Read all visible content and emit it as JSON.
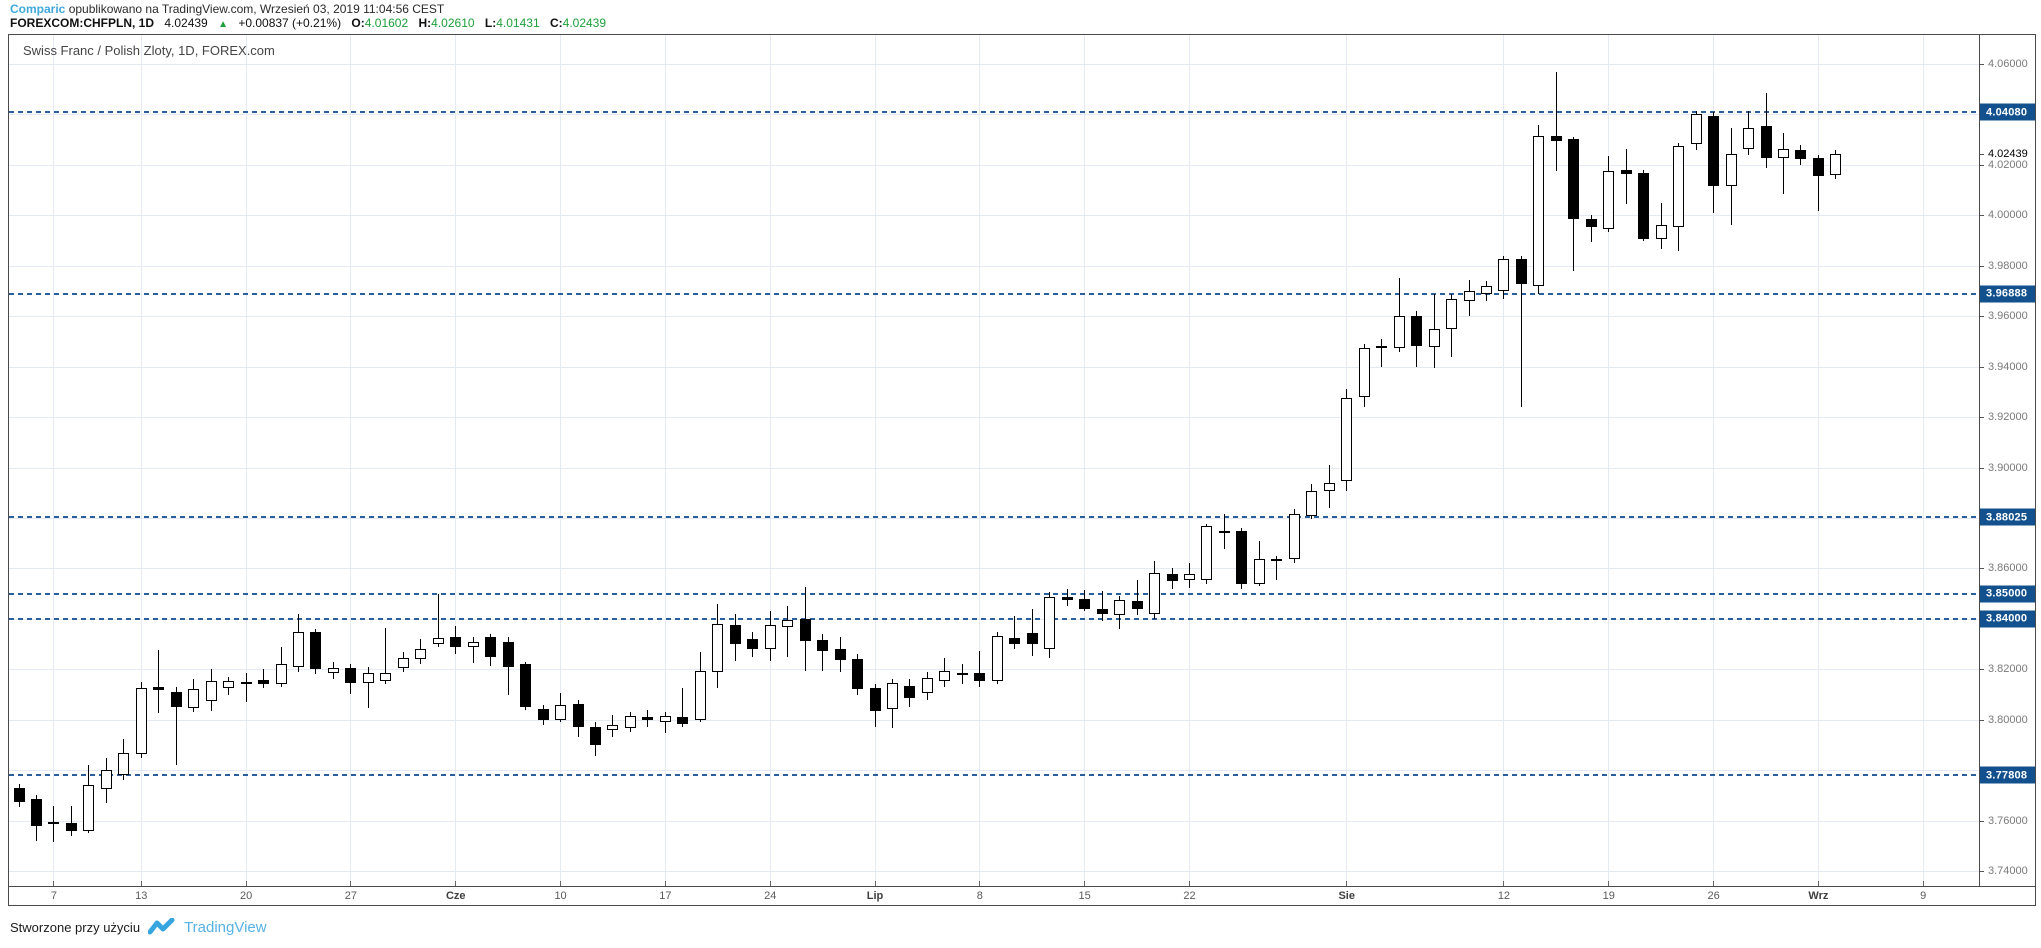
{
  "header": {
    "source": "Comparic",
    "published_rest": " opublikowano na TradingView.com, Wrzesień 03, 2019 11:04:56 CEST",
    "symbol_line": {
      "symbol": "FOREXCOM:CHFPLN, 1D",
      "last": "4.02439",
      "direction_icon": "▲",
      "change": "+0.00837 (+0.21%)",
      "o_label": "O:",
      "o": "4.01602",
      "h_label": "H:",
      "h": "4.02610",
      "l_label": "L:",
      "l": "4.01431",
      "c_label": "C:",
      "c": "4.02439"
    }
  },
  "chart": {
    "title": "Swiss Franc / Polish Zloty, 1D, FOREX.com",
    "last_price_label": "4.02439",
    "level_badges": [
      "4.04080",
      "3.96888",
      "3.88025",
      "3.85000",
      "3.84000",
      "3.77808"
    ],
    "y_labels": [
      "4.06000",
      "4.02000",
      "4.00000",
      "3.98000",
      "3.96000",
      "3.94000",
      "3.92000",
      "3.90000",
      "3.86000",
      "3.82000",
      "3.80000",
      "3.76000",
      "3.74000"
    ],
    "colors": {
      "badge_blue": "#13518e",
      "dashed_blue": "#2a5f9e",
      "grid": "#e4eaf4",
      "bull": "#ffffff",
      "bear": "#000000",
      "link_blue": "#3fa9dc",
      "green": "#1fa039",
      "brand_blue": "#55b2e5"
    }
  },
  "footer": {
    "text": "Stworzone przy użyciu",
    "brand": "TradingView"
  },
  "chart_data": {
    "type": "candlestick",
    "symbol": "FOREXCOM:CHFPLN",
    "interval": "1D",
    "title": "Swiss Franc / Polish Zloty, 1D, FOREX.com",
    "ylim": [
      3.7341,
      4.0715
    ],
    "y_tick_step": 0.02,
    "levels": [
      4.0408,
      3.96888,
      3.88025,
      3.85,
      3.84,
      3.77808
    ],
    "last_price": 4.02439,
    "x_ticks": [
      {
        "label": "7",
        "i": 2,
        "month": false
      },
      {
        "label": "13",
        "i": 7,
        "month": false
      },
      {
        "label": "20",
        "i": 13,
        "month": false
      },
      {
        "label": "27",
        "i": 19,
        "month": false
      },
      {
        "label": "Cze",
        "i": 25,
        "month": true
      },
      {
        "label": "10",
        "i": 31,
        "month": false
      },
      {
        "label": "17",
        "i": 37,
        "month": false
      },
      {
        "label": "24",
        "i": 43,
        "month": false
      },
      {
        "label": "Lip",
        "i": 49,
        "month": true
      },
      {
        "label": "8",
        "i": 55,
        "month": false
      },
      {
        "label": "15",
        "i": 61,
        "month": false
      },
      {
        "label": "22",
        "i": 67,
        "month": false
      },
      {
        "label": "Sie",
        "i": 76,
        "month": true
      },
      {
        "label": "12",
        "i": 85,
        "month": false
      },
      {
        "label": "19",
        "i": 91,
        "month": false
      },
      {
        "label": "26",
        "i": 97,
        "month": false
      },
      {
        "label": "Wrz",
        "i": 103,
        "month": true
      },
      {
        "label": "9",
        "i": 109,
        "month": false
      }
    ],
    "dates": [
      "2019-05-05",
      "2019-05-06",
      "2019-05-07",
      "2019-05-08",
      "2019-05-09",
      "2019-05-10",
      "2019-05-12",
      "2019-05-13",
      "2019-05-14",
      "2019-05-15",
      "2019-05-16",
      "2019-05-17",
      "2019-05-19",
      "2019-05-20",
      "2019-05-21",
      "2019-05-22",
      "2019-05-23",
      "2019-05-24",
      "2019-05-26",
      "2019-05-27",
      "2019-05-28",
      "2019-05-29",
      "2019-05-30",
      "2019-05-31",
      "2019-06-02",
      "2019-06-03",
      "2019-06-04",
      "2019-06-05",
      "2019-06-06",
      "2019-06-07",
      "2019-06-09",
      "2019-06-10",
      "2019-06-11",
      "2019-06-12",
      "2019-06-13",
      "2019-06-14",
      "2019-06-16",
      "2019-06-17",
      "2019-06-18",
      "2019-06-19",
      "2019-06-20",
      "2019-06-21",
      "2019-06-23",
      "2019-06-24",
      "2019-06-25",
      "2019-06-26",
      "2019-06-27",
      "2019-06-28",
      "2019-06-30",
      "2019-07-01",
      "2019-07-02",
      "2019-07-03",
      "2019-07-04",
      "2019-07-05",
      "2019-07-07",
      "2019-07-08",
      "2019-07-09",
      "2019-07-10",
      "2019-07-11",
      "2019-07-12",
      "2019-07-14",
      "2019-07-15",
      "2019-07-16",
      "2019-07-17",
      "2019-07-18",
      "2019-07-19",
      "2019-07-21",
      "2019-07-22",
      "2019-07-23",
      "2019-07-24",
      "2019-07-25",
      "2019-07-26",
      "2019-07-28",
      "2019-07-29",
      "2019-07-30",
      "2019-07-31",
      "2019-08-01",
      "2019-08-02",
      "2019-08-04",
      "2019-08-05",
      "2019-08-06",
      "2019-08-07",
      "2019-08-08",
      "2019-08-09",
      "2019-08-11",
      "2019-08-12",
      "2019-08-13",
      "2019-08-14",
      "2019-08-15",
      "2019-08-16",
      "2019-08-18",
      "2019-08-19",
      "2019-08-20",
      "2019-08-21",
      "2019-08-22",
      "2019-08-23",
      "2019-08-25",
      "2019-08-26",
      "2019-08-27",
      "2019-08-28",
      "2019-08-29",
      "2019-08-30",
      "2019-09-01",
      "2019-09-02",
      "2019-09-03"
    ],
    "candles": [
      [
        3.773,
        3.7745,
        3.7655,
        3.7675
      ],
      [
        3.7685,
        3.77,
        3.752,
        3.758
      ],
      [
        3.7595,
        3.766,
        3.7515,
        3.7585
      ],
      [
        3.759,
        3.766,
        3.754,
        3.756
      ],
      [
        3.756,
        3.782,
        3.755,
        3.774
      ],
      [
        3.7725,
        3.785,
        3.767,
        3.78
      ],
      [
        3.778,
        3.7925,
        3.776,
        3.787
      ],
      [
        3.7865,
        3.815,
        3.785,
        3.8125
      ],
      [
        3.813,
        3.8275,
        3.8025,
        3.8118
      ],
      [
        3.811,
        3.813,
        3.782,
        3.805
      ],
      [
        3.8047,
        3.816,
        3.803,
        3.8122
      ],
      [
        3.8075,
        3.82,
        3.8035,
        3.8155
      ],
      [
        3.8126,
        3.817,
        3.81,
        3.8154
      ],
      [
        3.8145,
        3.8185,
        3.807,
        3.8148
      ],
      [
        3.8158,
        3.82,
        3.8125,
        3.8142
      ],
      [
        3.8142,
        3.829,
        3.813,
        3.822
      ],
      [
        3.821,
        3.842,
        3.819,
        3.835
      ],
      [
        3.835,
        3.836,
        3.818,
        3.82
      ],
      [
        3.8186,
        3.823,
        3.816,
        3.8206
      ],
      [
        3.8206,
        3.822,
        3.8103,
        3.8146
      ],
      [
        3.8146,
        3.821,
        3.8047,
        3.8186
      ],
      [
        3.8155,
        3.8362,
        3.814,
        3.8185
      ],
      [
        3.8206,
        3.827,
        3.819,
        3.8246
      ],
      [
        3.824,
        3.832,
        3.822,
        3.828
      ],
      [
        3.83,
        3.8497,
        3.829,
        3.8325
      ],
      [
        3.833,
        3.837,
        3.826,
        3.829
      ],
      [
        3.829,
        3.833,
        3.8226,
        3.831
      ],
      [
        3.833,
        3.834,
        3.8212,
        3.825
      ],
      [
        3.831,
        3.833,
        3.81,
        3.821
      ],
      [
        3.822,
        3.823,
        3.804,
        3.805
      ],
      [
        3.8043,
        3.806,
        3.798,
        3.8
      ],
      [
        3.8,
        3.8107,
        3.799,
        3.806
      ],
      [
        3.8063,
        3.808,
        3.793,
        3.797
      ],
      [
        3.797,
        3.799,
        3.7855,
        3.79
      ],
      [
        3.796,
        3.8018,
        3.793,
        3.798
      ],
      [
        3.7967,
        3.803,
        3.795,
        3.8014
      ],
      [
        3.801,
        3.804,
        3.797,
        3.8
      ],
      [
        3.799,
        3.803,
        3.7946,
        3.8014
      ],
      [
        3.801,
        3.8126,
        3.797,
        3.7985
      ],
      [
        3.8,
        3.827,
        3.799,
        3.8194
      ],
      [
        3.819,
        3.846,
        3.8126,
        3.838
      ],
      [
        3.8374,
        3.842,
        3.8234,
        3.8302
      ],
      [
        3.8322,
        3.835,
        3.825,
        3.828
      ],
      [
        3.828,
        3.843,
        3.8234,
        3.8374
      ],
      [
        3.8366,
        3.845,
        3.825,
        3.8394
      ],
      [
        3.84,
        3.8525,
        3.8194,
        3.8314
      ],
      [
        3.8318,
        3.834,
        3.8194,
        3.8274
      ],
      [
        3.8282,
        3.833,
        3.819,
        3.8238
      ],
      [
        3.8242,
        3.826,
        3.81,
        3.8122
      ],
      [
        3.8126,
        3.814,
        3.797,
        3.8035
      ],
      [
        3.8043,
        3.816,
        3.7966,
        3.8146
      ],
      [
        3.8134,
        3.816,
        3.805,
        3.8087
      ],
      [
        3.8107,
        3.819,
        3.808,
        3.8166
      ],
      [
        3.8154,
        3.8246,
        3.813,
        3.8194
      ],
      [
        3.8186,
        3.822,
        3.814,
        3.8186
      ],
      [
        3.8186,
        3.8274,
        3.813,
        3.8154
      ],
      [
        3.8154,
        3.835,
        3.814,
        3.8334
      ],
      [
        3.8326,
        3.841,
        3.8282,
        3.8302
      ],
      [
        3.8344,
        3.8439,
        3.8254,
        3.8301
      ],
      [
        3.8282,
        3.8505,
        3.8246,
        3.8487
      ],
      [
        3.8487,
        3.852,
        3.845,
        3.8474
      ],
      [
        3.8478,
        3.8514,
        3.843,
        3.8438
      ],
      [
        3.8438,
        3.851,
        3.839,
        3.8418
      ],
      [
        3.8414,
        3.849,
        3.836,
        3.8474
      ],
      [
        3.847,
        3.8553,
        3.8414,
        3.8438
      ],
      [
        3.842,
        3.8628,
        3.84,
        3.858
      ],
      [
        3.8577,
        3.86,
        3.852,
        3.855
      ],
      [
        3.8553,
        3.862,
        3.8522,
        3.8577
      ],
      [
        3.8553,
        3.8776,
        3.854,
        3.8767
      ],
      [
        3.8748,
        3.8816,
        3.8677,
        3.874
      ],
      [
        3.8748,
        3.876,
        3.852,
        3.854
      ],
      [
        3.854,
        3.8708,
        3.853,
        3.8637
      ],
      [
        3.8637,
        3.865,
        3.8553,
        3.863
      ],
      [
        3.8637,
        3.8836,
        3.862,
        3.8816
      ],
      [
        3.8808,
        3.8935,
        3.8796,
        3.8907
      ],
      [
        3.8907,
        3.901,
        3.884,
        3.8939
      ],
      [
        3.8947,
        3.9312,
        3.8907,
        3.9276
      ],
      [
        3.928,
        3.949,
        3.924,
        3.9474
      ],
      [
        3.948,
        3.951,
        3.94,
        3.948
      ],
      [
        3.9474,
        3.975,
        3.946,
        3.96
      ],
      [
        3.96,
        3.962,
        3.94,
        3.948
      ],
      [
        3.9478,
        3.9688,
        3.9394,
        3.955
      ],
      [
        3.955,
        3.969,
        3.944,
        3.9668
      ],
      [
        3.966,
        3.9744,
        3.96,
        3.97
      ],
      [
        3.969,
        3.974,
        3.966,
        3.9718
      ],
      [
        3.97,
        3.984,
        3.9668,
        3.9826
      ],
      [
        3.9826,
        3.984,
        3.924,
        3.9726
      ],
      [
        3.9718,
        4.036,
        3.9688,
        4.0313
      ],
      [
        4.0313,
        4.057,
        4.0176,
        4.0293
      ],
      [
        4.0301,
        4.031,
        3.978,
        3.9985
      ],
      [
        3.9985,
        4.0,
        3.9894,
        3.9953
      ],
      [
        3.9945,
        4.0235,
        3.9933,
        4.0176
      ],
      [
        4.018,
        4.0262,
        4.0044,
        4.0164
      ],
      [
        4.0168,
        4.018,
        3.99,
        3.9906
      ],
      [
        3.9906,
        4.005,
        3.9866,
        3.9961
      ],
      [
        3.9953,
        4.0287,
        3.9858,
        4.0274
      ],
      [
        4.0282,
        4.0414,
        4.026,
        4.0402
      ],
      [
        4.0394,
        4.0408,
        4.0009,
        4.0116
      ],
      [
        4.0116,
        4.0347,
        3.9961,
        4.0243
      ],
      [
        4.0262,
        4.0414,
        4.024,
        4.0347
      ],
      [
        4.0354,
        4.0485,
        4.0188,
        4.0227
      ],
      [
        4.0227,
        4.0327,
        4.0084,
        4.0262
      ],
      [
        4.0258,
        4.028,
        4.02,
        4.0223
      ],
      [
        4.0227,
        4.024,
        4.0017,
        4.0156
      ],
      [
        4.01602,
        4.0261,
        4.01431,
        4.02439
      ]
    ]
  }
}
